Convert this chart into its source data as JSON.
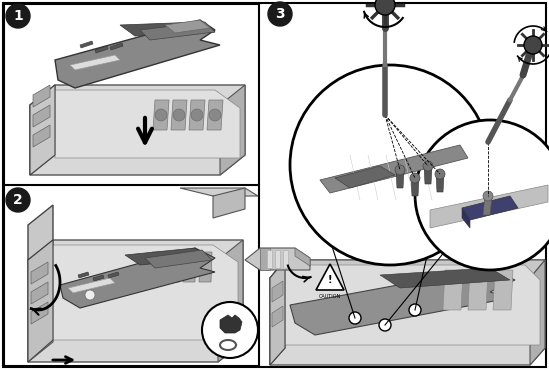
{
  "fig_width": 5.49,
  "fig_height": 3.7,
  "dpi": 100,
  "bg_color": "#ffffff",
  "border_color": "#000000",
  "label_bg": "#1a1a1a",
  "label_fg": "#ffffff",
  "label_fontsize": 10,
  "gray_light": "#e8e8e8",
  "gray_mid": "#b0b0b0",
  "gray_dark": "#606060",
  "gray_darker": "#404040",
  "gray_chassis": "#d4d4d4",
  "gray_board": "#909090",
  "gray_board2": "#787878"
}
